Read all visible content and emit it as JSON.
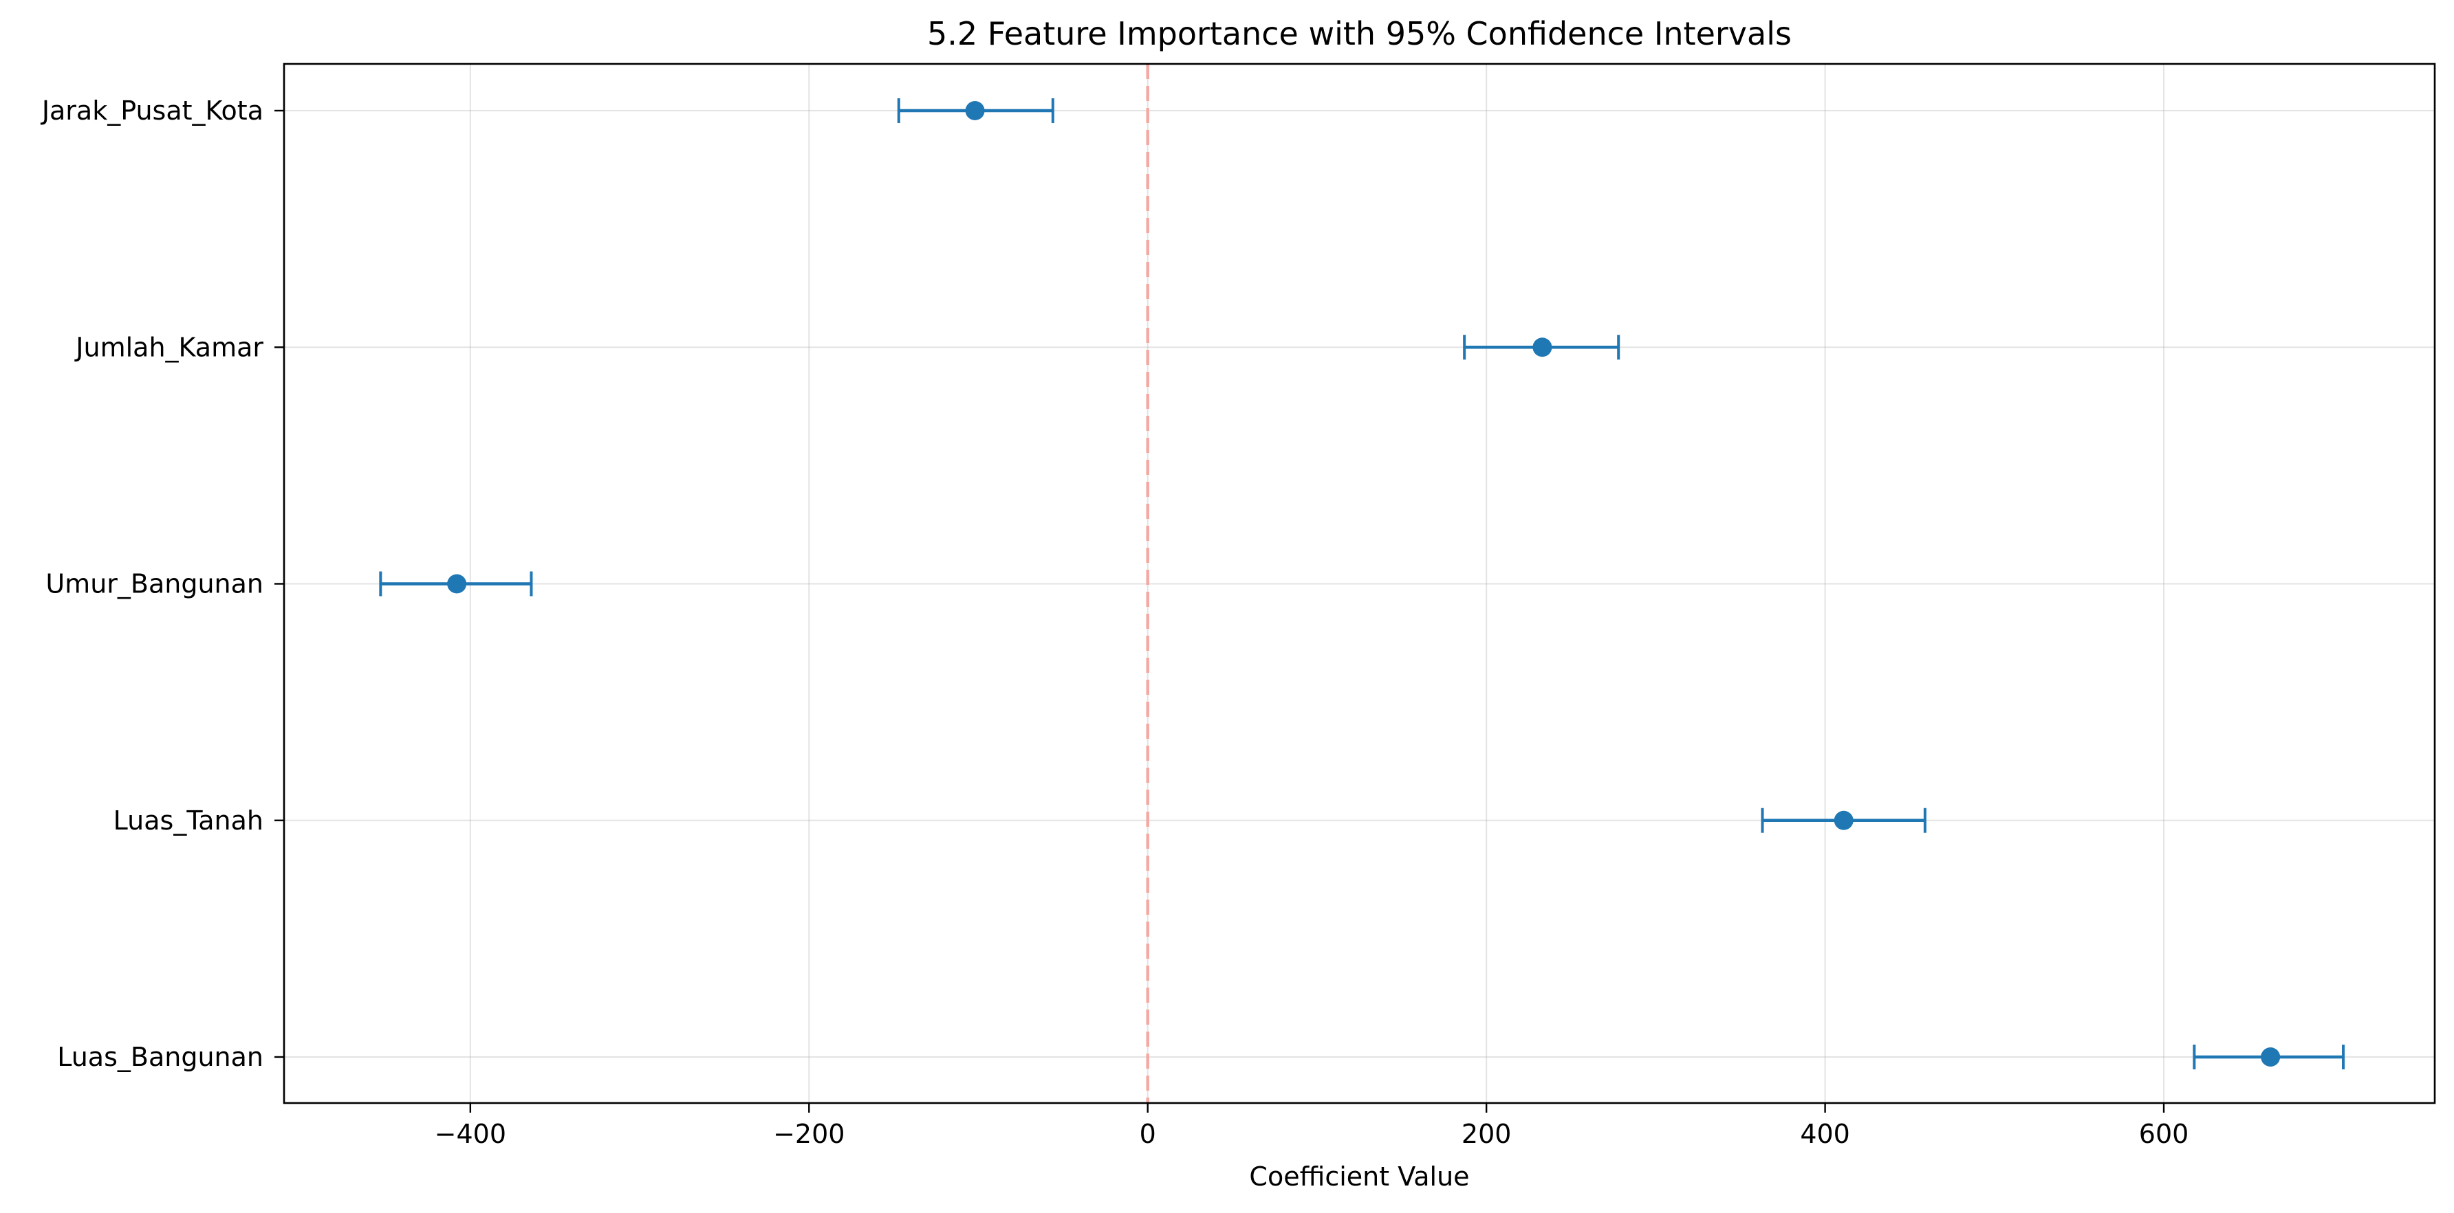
{
  "chart_data": {
    "type": "errorbar",
    "title": "5.2 Feature Importance with 95% Confidence Intervals",
    "xlabel": "Coefficient Value",
    "ylabel": "",
    "xlim": [
      -510,
      760
    ],
    "xticks": [
      -400,
      -200,
      0,
      200,
      400,
      600
    ],
    "xtick_labels": [
      "−400",
      "−200",
      "0",
      "200",
      "400",
      "600"
    ],
    "categories": [
      "Luas_Bangunan",
      "Luas_Tanah",
      "Umur_Bangunan",
      "Jumlah_Kamar",
      "Jarak_Pusat_Kota"
    ],
    "points": [
      {
        "feature": "Luas_Bangunan",
        "value": 663,
        "ci_low": 618,
        "ci_high": 706
      },
      {
        "feature": "Luas_Tanah",
        "value": 411,
        "ci_low": 363,
        "ci_high": 459
      },
      {
        "feature": "Umur_Bangunan",
        "value": -408,
        "ci_low": -453,
        "ci_high": -364
      },
      {
        "feature": "Jumlah_Kamar",
        "value": 233,
        "ci_low": 187,
        "ci_high": 278
      },
      {
        "feature": "Jarak_Pusat_Kota",
        "value": -102,
        "ci_low": -147,
        "ci_high": -56
      }
    ],
    "reference_line": {
      "x": 0,
      "style": "dashed",
      "color": "#f4a79d"
    },
    "series_color": "#1f77b4",
    "grid": true,
    "legend": "none"
  }
}
